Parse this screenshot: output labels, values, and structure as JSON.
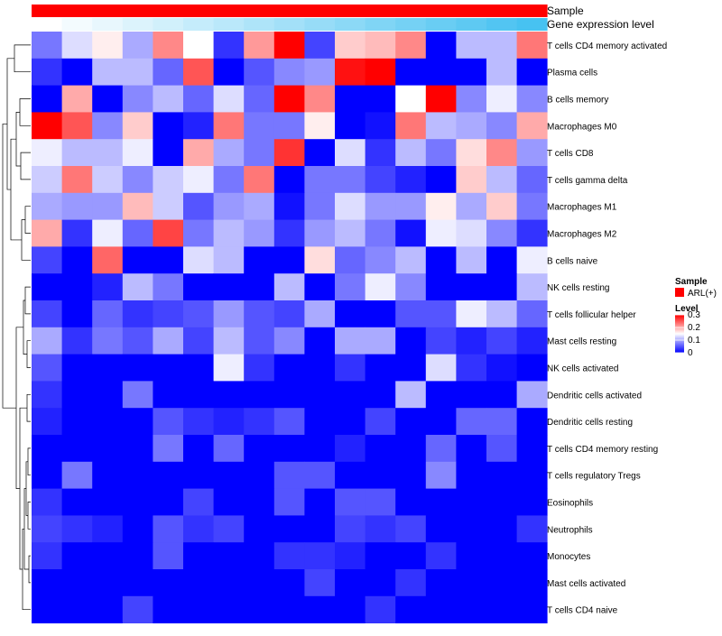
{
  "chart_data": {
    "type": "heatmap",
    "annotations": [
      {
        "name": "Sample",
        "color": "#ff0000"
      },
      {
        "name": "Gene expression level",
        "gradient": [
          "#ffffff",
          "#3fbff0"
        ]
      }
    ],
    "rows": [
      "T cells CD4 memory activated",
      "Plasma cells",
      "B cells memory",
      "Macrophages M0",
      "T cells CD8",
      "T cells gamma delta",
      "Macrophages M1",
      "Macrophages M2",
      "B cells naive",
      "NK cells resting",
      "T cells follicular helper",
      "Mast cells resting",
      "NK cells activated",
      "Dendritic cells activated",
      "Dendritic cells resting",
      "T cells CD4 memory resting",
      "T cells regulatory  Tregs",
      "Eosinophils",
      "Neutrophils",
      "Monocytes",
      "Mast cells activated",
      "T cells CD4 naive"
    ],
    "values": [
      [
        0.07,
        0.13,
        0.16,
        0.1,
        0.22,
        0.15,
        0.03,
        0.21,
        0.3,
        0.04,
        0.18,
        0.19,
        0.22,
        0.0,
        0.11,
        0.11,
        0.23
      ],
      [
        0.03,
        0.0,
        0.11,
        0.11,
        0.06,
        0.25,
        0.0,
        0.05,
        0.08,
        0.09,
        0.29,
        0.3,
        0.0,
        0.0,
        0.0,
        0.11,
        0.0
      ],
      [
        0.0,
        0.2,
        0.0,
        0.08,
        0.11,
        0.06,
        0.13,
        0.06,
        0.3,
        0.22,
        0.0,
        0.0,
        0.15,
        0.3,
        0.08,
        0.14,
        0.08
      ],
      [
        0.3,
        0.25,
        0.08,
        0.18,
        0.0,
        0.02,
        0.23,
        0.07,
        0.07,
        0.16,
        0.0,
        0.01,
        0.23,
        0.11,
        0.1,
        0.08,
        0.2
      ],
      [
        0.14,
        0.11,
        0.11,
        0.14,
        0.0,
        0.2,
        0.1,
        0.07,
        0.27,
        0.0,
        0.13,
        0.03,
        0.11,
        0.07,
        0.17,
        0.22,
        0.09
      ],
      [
        0.12,
        0.23,
        0.12,
        0.08,
        0.12,
        0.14,
        0.07,
        0.23,
        0.0,
        0.07,
        0.07,
        0.04,
        0.02,
        0.0,
        0.18,
        0.11,
        0.06
      ],
      [
        0.1,
        0.09,
        0.09,
        0.19,
        0.12,
        0.05,
        0.09,
        0.1,
        0.01,
        0.07,
        0.13,
        0.09,
        0.09,
        0.16,
        0.1,
        0.18,
        0.07
      ],
      [
        0.2,
        0.03,
        0.14,
        0.06,
        0.26,
        0.07,
        0.11,
        0.09,
        0.03,
        0.09,
        0.11,
        0.07,
        0.01,
        0.14,
        0.13,
        0.08,
        0.03
      ],
      [
        0.04,
        0.0,
        0.24,
        0.0,
        0.0,
        0.13,
        0.11,
        0.0,
        0.0,
        0.17,
        0.06,
        0.08,
        0.11,
        0.0,
        0.11,
        0.0,
        0.14
      ],
      [
        0.0,
        0.0,
        0.02,
        0.11,
        0.07,
        0.0,
        0.0,
        0.0,
        0.11,
        0.0,
        0.07,
        0.14,
        0.08,
        0.0,
        0.0,
        0.0,
        0.11
      ],
      [
        0.04,
        0.0,
        0.06,
        0.03,
        0.04,
        0.05,
        0.09,
        0.05,
        0.04,
        0.1,
        0.0,
        0.0,
        0.05,
        0.05,
        0.14,
        0.11,
        0.06
      ],
      [
        0.1,
        0.03,
        0.07,
        0.05,
        0.1,
        0.04,
        0.11,
        0.05,
        0.08,
        0.0,
        0.1,
        0.1,
        0.0,
        0.04,
        0.02,
        0.04,
        0.02
      ],
      [
        0.05,
        0.0,
        0.0,
        0.0,
        0.0,
        0.0,
        0.14,
        0.03,
        0.0,
        0.0,
        0.03,
        0.0,
        0.0,
        0.13,
        0.03,
        0.01,
        0.0
      ],
      [
        0.03,
        0.0,
        0.0,
        0.07,
        0.0,
        0.0,
        0.0,
        0.0,
        0.0,
        0.0,
        0.0,
        0.0,
        0.11,
        0.0,
        0.0,
        0.0,
        0.1
      ],
      [
        0.02,
        0.0,
        0.0,
        0.0,
        0.05,
        0.03,
        0.02,
        0.03,
        0.05,
        0.0,
        0.0,
        0.04,
        0.0,
        0.0,
        0.06,
        0.06,
        0.0
      ],
      [
        0.0,
        0.0,
        0.0,
        0.0,
        0.07,
        0.0,
        0.06,
        0.0,
        0.0,
        0.0,
        0.02,
        0.0,
        0.0,
        0.06,
        0.0,
        0.05,
        0.0
      ],
      [
        0.0,
        0.07,
        0.0,
        0.0,
        0.0,
        0.0,
        0.0,
        0.0,
        0.05,
        0.05,
        0.0,
        0.0,
        0.0,
        0.08,
        0.0,
        0.0,
        0.0
      ],
      [
        0.03,
        0.0,
        0.0,
        0.0,
        0.0,
        0.04,
        0.0,
        0.0,
        0.05,
        0.0,
        0.05,
        0.05,
        0.0,
        0.0,
        0.0,
        0.0,
        0.0
      ],
      [
        0.04,
        0.03,
        0.02,
        0.0,
        0.05,
        0.03,
        0.04,
        0.0,
        0.0,
        0.0,
        0.04,
        0.03,
        0.04,
        0.0,
        0.0,
        0.0,
        0.03
      ],
      [
        0.03,
        0.0,
        0.0,
        0.0,
        0.05,
        0.0,
        0.0,
        0.0,
        0.03,
        0.03,
        0.02,
        0.0,
        0.0,
        0.03,
        0.0,
        0.0,
        0.0
      ],
      [
        0.0,
        0.0,
        0.0,
        0.0,
        0.0,
        0.0,
        0.0,
        0.0,
        0.0,
        0.04,
        0.0,
        0.0,
        0.03,
        0.0,
        0.0,
        0.0,
        0.0
      ],
      [
        0.0,
        0.0,
        0.0,
        0.04,
        0.0,
        0.0,
        0.0,
        0.0,
        0.0,
        0.0,
        0.0,
        0.03,
        0.0,
        0.0,
        0.0,
        0.0,
        0.0
      ]
    ],
    "gene_expression_level": [
      0.0,
      0.06,
      0.12,
      0.18,
      0.24,
      0.3,
      0.36,
      0.42,
      0.48,
      0.54,
      0.6,
      0.66,
      0.72,
      0.78,
      0.84,
      0.9,
      0.96
    ],
    "legend": {
      "sample_title": "Sample",
      "sample_entry": "ARL(+)",
      "sample_color": "#ff0000",
      "level_title": "Level",
      "ticks": [
        "0.3",
        "0.2",
        "0.1",
        "0"
      ],
      "tick_values": [
        0.3,
        0.2,
        0.1,
        0
      ],
      "colors": [
        "#0000ff",
        "#ffffff",
        "#ff0000"
      ],
      "range": [
        0,
        0.3
      ]
    }
  }
}
